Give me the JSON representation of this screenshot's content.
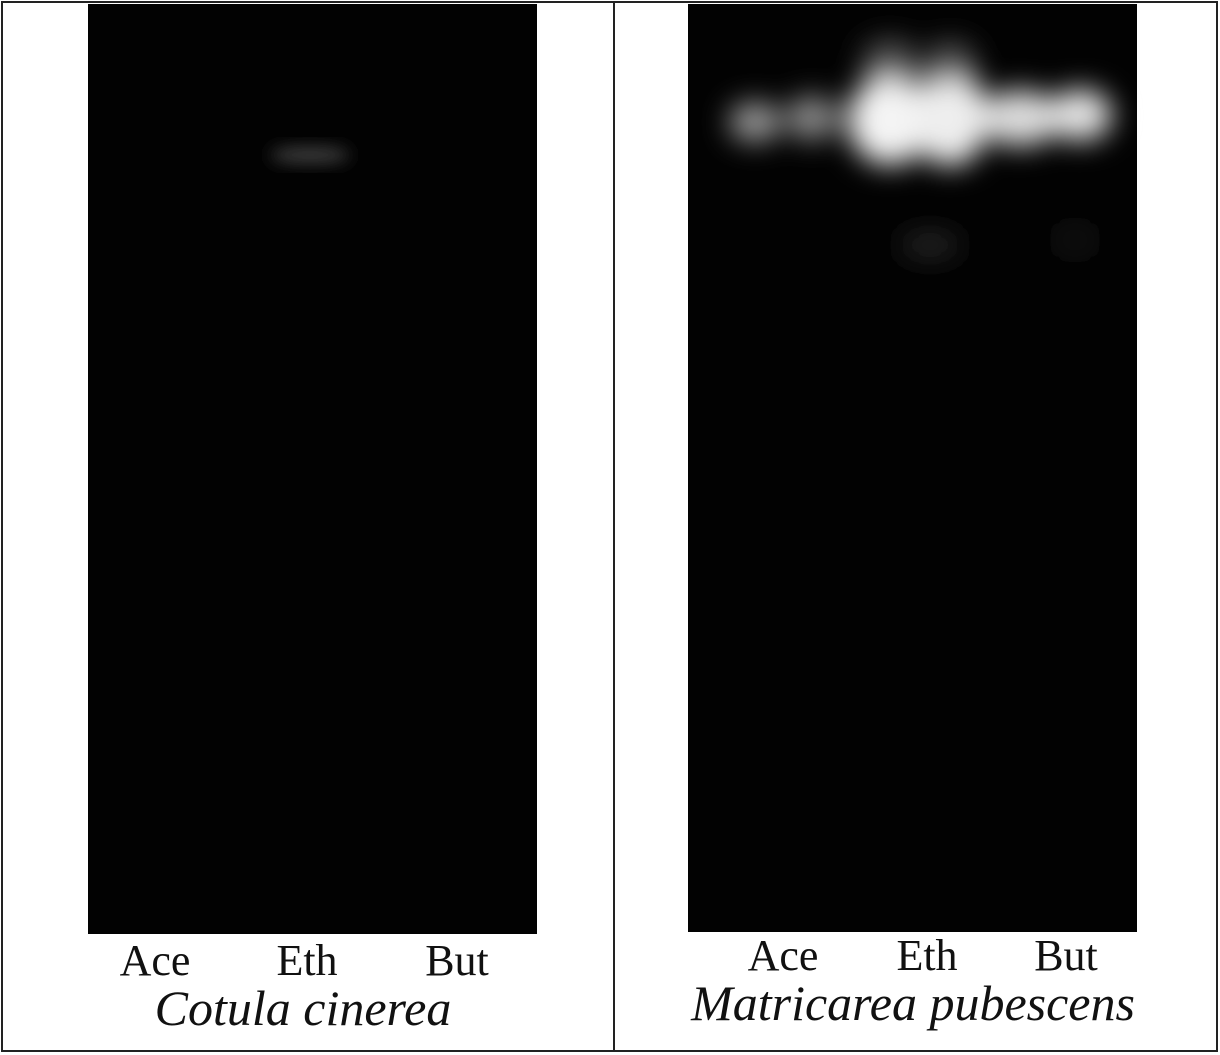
{
  "panels": [
    {
      "lanes": [
        "Ace",
        "Eth",
        "But"
      ],
      "species": "Cotula cinerea"
    },
    {
      "lanes": [
        "Ace",
        "Eth",
        "But"
      ],
      "species": "Matricarea pubescens"
    }
  ]
}
